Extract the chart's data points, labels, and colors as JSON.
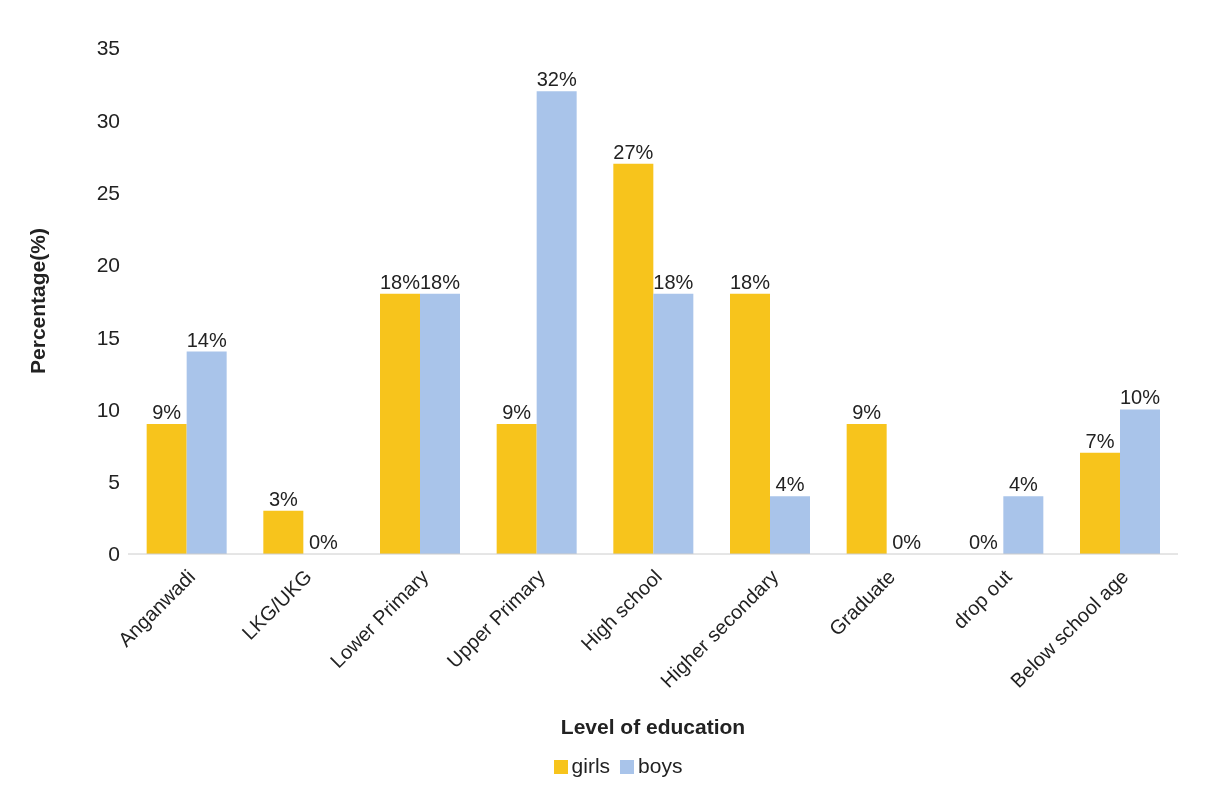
{
  "chart_data": {
    "type": "bar",
    "xlabel": "Level of education",
    "ylabel": "Percentage(%)",
    "categories": [
      "Anganwadi",
      "LKG/UKG",
      "Lower Primary",
      "Upper Primary",
      "High school",
      "Higher secondary",
      "Graduate",
      "drop out",
      "Below school age"
    ],
    "series": [
      {
        "name": "girls",
        "color": "#f7c41c",
        "values": [
          9,
          3,
          18,
          9,
          27,
          18,
          9,
          0,
          7
        ],
        "value_labels": [
          "9%",
          "3%",
          "18%",
          "9%",
          "27%",
          "18%",
          "9%",
          "0%",
          "7%"
        ]
      },
      {
        "name": "boys",
        "color": "#a9c4ea",
        "values": [
          14,
          0,
          18,
          32,
          18,
          4,
          0,
          4,
          10
        ],
        "value_labels": [
          "14%",
          "0%",
          "18%",
          "32%",
          "18%",
          "4%",
          "0%",
          "4%",
          "10%"
        ]
      }
    ],
    "ylim": [
      0,
      35
    ],
    "yticks": [
      0,
      5,
      10,
      15,
      20,
      25,
      30,
      35
    ],
    "grid": false,
    "legend": "bottom"
  }
}
